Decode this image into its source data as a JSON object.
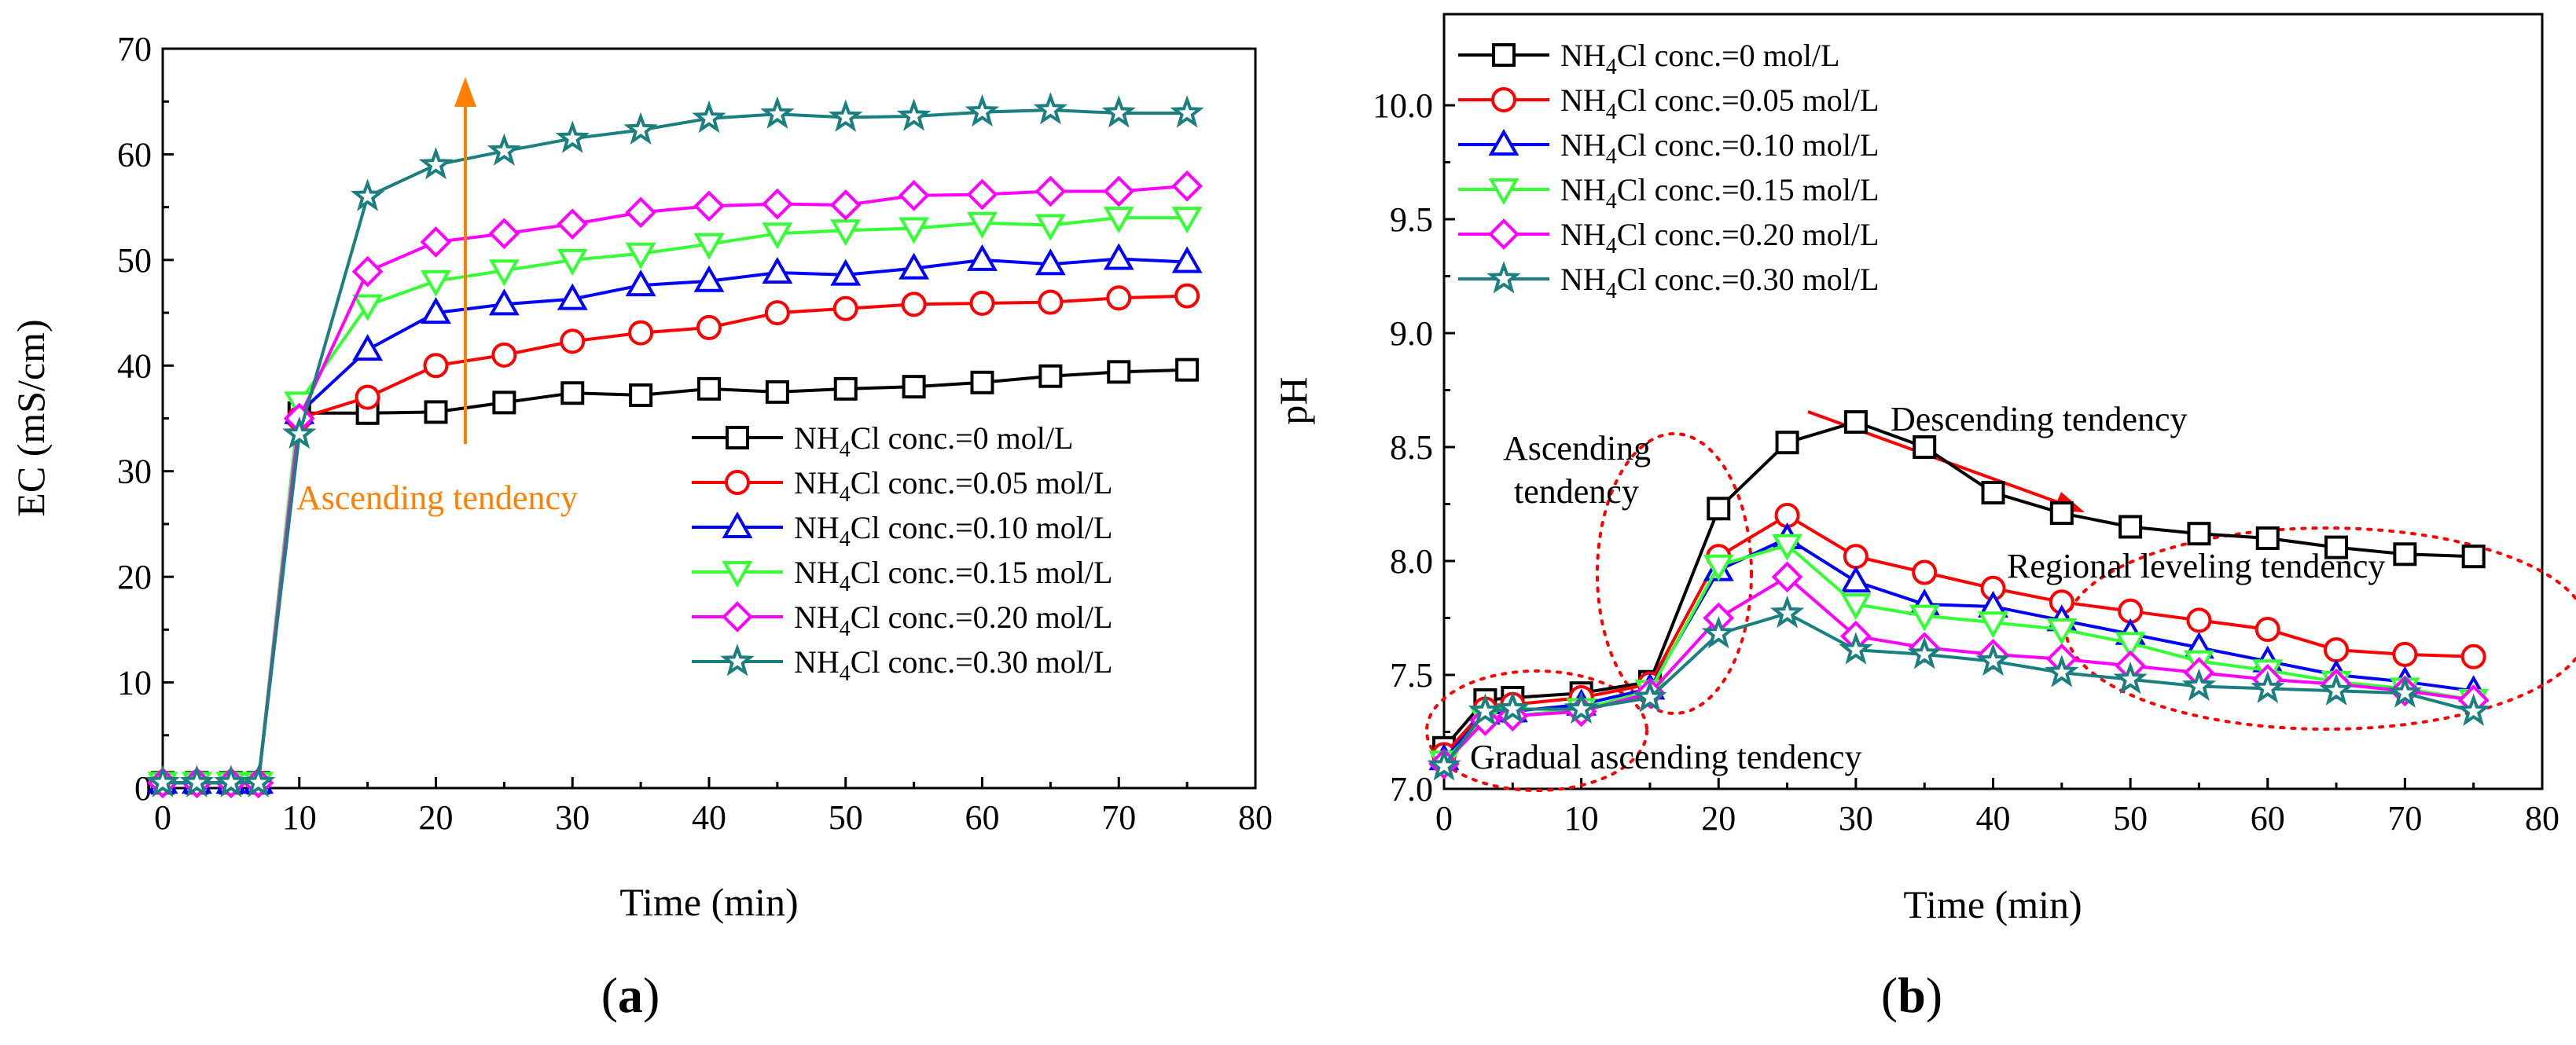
{
  "chart_data": [
    {
      "type": "line",
      "panel_label": {
        "prefix": "(",
        "letter": "a",
        "suffix": ")"
      },
      "xlabel": "Time (min)",
      "ylabel": "EC (mS/cm)",
      "xlim": [
        0,
        80
      ],
      "ylim": [
        0,
        70
      ],
      "xticks": [
        0,
        10,
        20,
        30,
        40,
        50,
        60,
        70,
        80
      ],
      "yticks": [
        0,
        10,
        20,
        30,
        40,
        50,
        60,
        70
      ],
      "x": [
        0,
        2.5,
        5,
        7,
        10,
        15,
        20,
        25,
        30,
        35,
        40,
        45,
        50,
        55,
        60,
        65,
        70,
        75
      ],
      "legend_position": "lower-right",
      "series": [
        {
          "name_parts": [
            "NH",
            "4",
            "Cl conc.=0 mol/L"
          ],
          "color": "#000000",
          "marker": "square",
          "values": [
            0.5,
            0.5,
            0.5,
            0.5,
            35.5,
            35.5,
            35.6,
            36.5,
            37.4,
            37.2,
            37.8,
            37.5,
            37.8,
            38.0,
            38.4,
            39.0,
            39.4,
            39.6
          ]
        },
        {
          "name_parts": [
            "NH",
            "4",
            "Cl conc.=0.05 mol/L"
          ],
          "color": "#ff0000",
          "marker": "circle",
          "values": [
            0.5,
            0.5,
            0.5,
            0.5,
            35.0,
            37.0,
            40.0,
            41.0,
            42.3,
            43.1,
            43.6,
            45.0,
            45.4,
            45.8,
            45.9,
            46.0,
            46.4,
            46.6
          ]
        },
        {
          "name_parts": [
            "NH",
            "4",
            "Cl conc.=0.10 mol/L"
          ],
          "color": "#0000ff",
          "marker": "triangle-up",
          "values": [
            0.5,
            0.5,
            0.5,
            0.5,
            35.5,
            41.5,
            45.0,
            45.8,
            46.3,
            47.6,
            48.0,
            48.8,
            48.6,
            49.2,
            50.0,
            49.6,
            50.1,
            49.8
          ]
        },
        {
          "name_parts": [
            "NH",
            "4",
            "Cl conc.=0.15 mol/L"
          ],
          "color": "#33ff33",
          "marker": "triangle-down",
          "values": [
            0.5,
            0.5,
            0.5,
            0.5,
            36.5,
            45.7,
            48.0,
            49.0,
            50.0,
            50.6,
            51.5,
            52.5,
            52.8,
            53.0,
            53.5,
            53.3,
            54.0,
            54.0
          ]
        },
        {
          "name_parts": [
            "NH",
            "4",
            "Cl conc.=0.20 mol/L"
          ],
          "color": "#ff00ff",
          "marker": "diamond",
          "values": [
            0.5,
            0.5,
            0.5,
            0.5,
            35.0,
            48.9,
            51.7,
            52.5,
            53.4,
            54.5,
            55.1,
            55.3,
            55.2,
            56.1,
            56.2,
            56.5,
            56.5,
            57.0
          ]
        },
        {
          "name_parts": [
            "NH",
            "4",
            "Cl conc.=0.30 mol/L"
          ],
          "color": "#1a7f7f",
          "marker": "star",
          "values": [
            0.5,
            0.5,
            0.5,
            0.5,
            33.5,
            56.0,
            59.0,
            60.3,
            61.5,
            62.3,
            63.4,
            63.8,
            63.5,
            63.6,
            64.0,
            64.2,
            63.9,
            63.9
          ]
        }
      ],
      "annotations": [
        {
          "text": "Ascending tendency",
          "color": "#ff8000"
        }
      ]
    },
    {
      "type": "line",
      "panel_label": {
        "prefix": "(",
        "letter": "b",
        "suffix": ")"
      },
      "xlabel": "Time (min)",
      "ylabel": "pH",
      "xlim": [
        0,
        80
      ],
      "ylim": [
        7.0,
        10.4
      ],
      "xticks": [
        0,
        10,
        20,
        30,
        40,
        50,
        60,
        70,
        80
      ],
      "yticks": [
        7.0,
        7.5,
        8.0,
        8.5,
        9.0,
        9.5,
        10.0
      ],
      "ytick_labels": [
        "7.0",
        "7.5",
        "8.0",
        "8.5",
        "9.0",
        "9.5",
        "10.0"
      ],
      "x": [
        0,
        3,
        5,
        10,
        15,
        20,
        25,
        30,
        35,
        40,
        45,
        50,
        55,
        60,
        65,
        70,
        75
      ],
      "legend_position": "top-left",
      "series": [
        {
          "name_parts": [
            "NH",
            "4",
            "Cl conc.=0 mol/L"
          ],
          "color": "#000000",
          "marker": "square",
          "values": [
            7.18,
            7.39,
            7.4,
            7.42,
            7.47,
            8.23,
            8.52,
            8.61,
            8.5,
            8.3,
            8.21,
            8.15,
            8.12,
            8.1,
            8.06,
            8.03,
            8.02
          ]
        },
        {
          "name_parts": [
            "NH",
            "4",
            "Cl conc.=0.05 mol/L"
          ],
          "color": "#ff0000",
          "marker": "circle",
          "values": [
            7.15,
            7.35,
            7.37,
            7.4,
            7.46,
            8.02,
            8.2,
            8.02,
            7.95,
            7.88,
            7.82,
            7.78,
            7.74,
            7.7,
            7.61,
            7.59,
            7.58
          ]
        },
        {
          "name_parts": [
            "NH",
            "4",
            "Cl conc.=0.10 mol/L"
          ],
          "color": "#0000ff",
          "marker": "triangle-up",
          "values": [
            7.13,
            7.33,
            7.34,
            7.37,
            7.44,
            7.96,
            8.1,
            7.91,
            7.81,
            7.8,
            7.74,
            7.68,
            7.62,
            7.56,
            7.5,
            7.47,
            7.43
          ]
        },
        {
          "name_parts": [
            "NH",
            "4",
            "Cl conc.=0.15 mol/L"
          ],
          "color": "#33ff33",
          "marker": "triangle-down",
          "values": [
            7.12,
            7.31,
            7.32,
            7.35,
            7.43,
            7.98,
            8.07,
            7.81,
            7.76,
            7.73,
            7.7,
            7.64,
            7.56,
            7.52,
            7.47,
            7.44,
            7.39
          ]
        },
        {
          "name_parts": [
            "NH",
            "4",
            "Cl conc.=0.20 mol/L"
          ],
          "color": "#ff00ff",
          "marker": "diamond",
          "values": [
            7.11,
            7.3,
            7.32,
            7.34,
            7.42,
            7.75,
            7.93,
            7.67,
            7.62,
            7.59,
            7.57,
            7.54,
            7.51,
            7.48,
            7.46,
            7.43,
            7.39
          ]
        },
        {
          "name_parts": [
            "NH",
            "4",
            "Cl conc.=0.30 mol/L"
          ],
          "color": "#1a7f7f",
          "marker": "star",
          "values": [
            7.1,
            7.34,
            7.35,
            7.35,
            7.4,
            7.68,
            7.77,
            7.61,
            7.59,
            7.56,
            7.51,
            7.48,
            7.45,
            7.44,
            7.43,
            7.42,
            7.34
          ]
        }
      ],
      "annotations": [
        {
          "text": "Descending tendency",
          "color": "#ff0000"
        },
        {
          "text": "Ascending",
          "color": "#ff0000"
        },
        {
          "text": "tendency",
          "color": "#ff0000"
        },
        {
          "text": "Regional leveling tendency",
          "color": "#ff0000"
        },
        {
          "text": "Gradual ascending tendency",
          "color": "#ff0000"
        }
      ]
    }
  ]
}
